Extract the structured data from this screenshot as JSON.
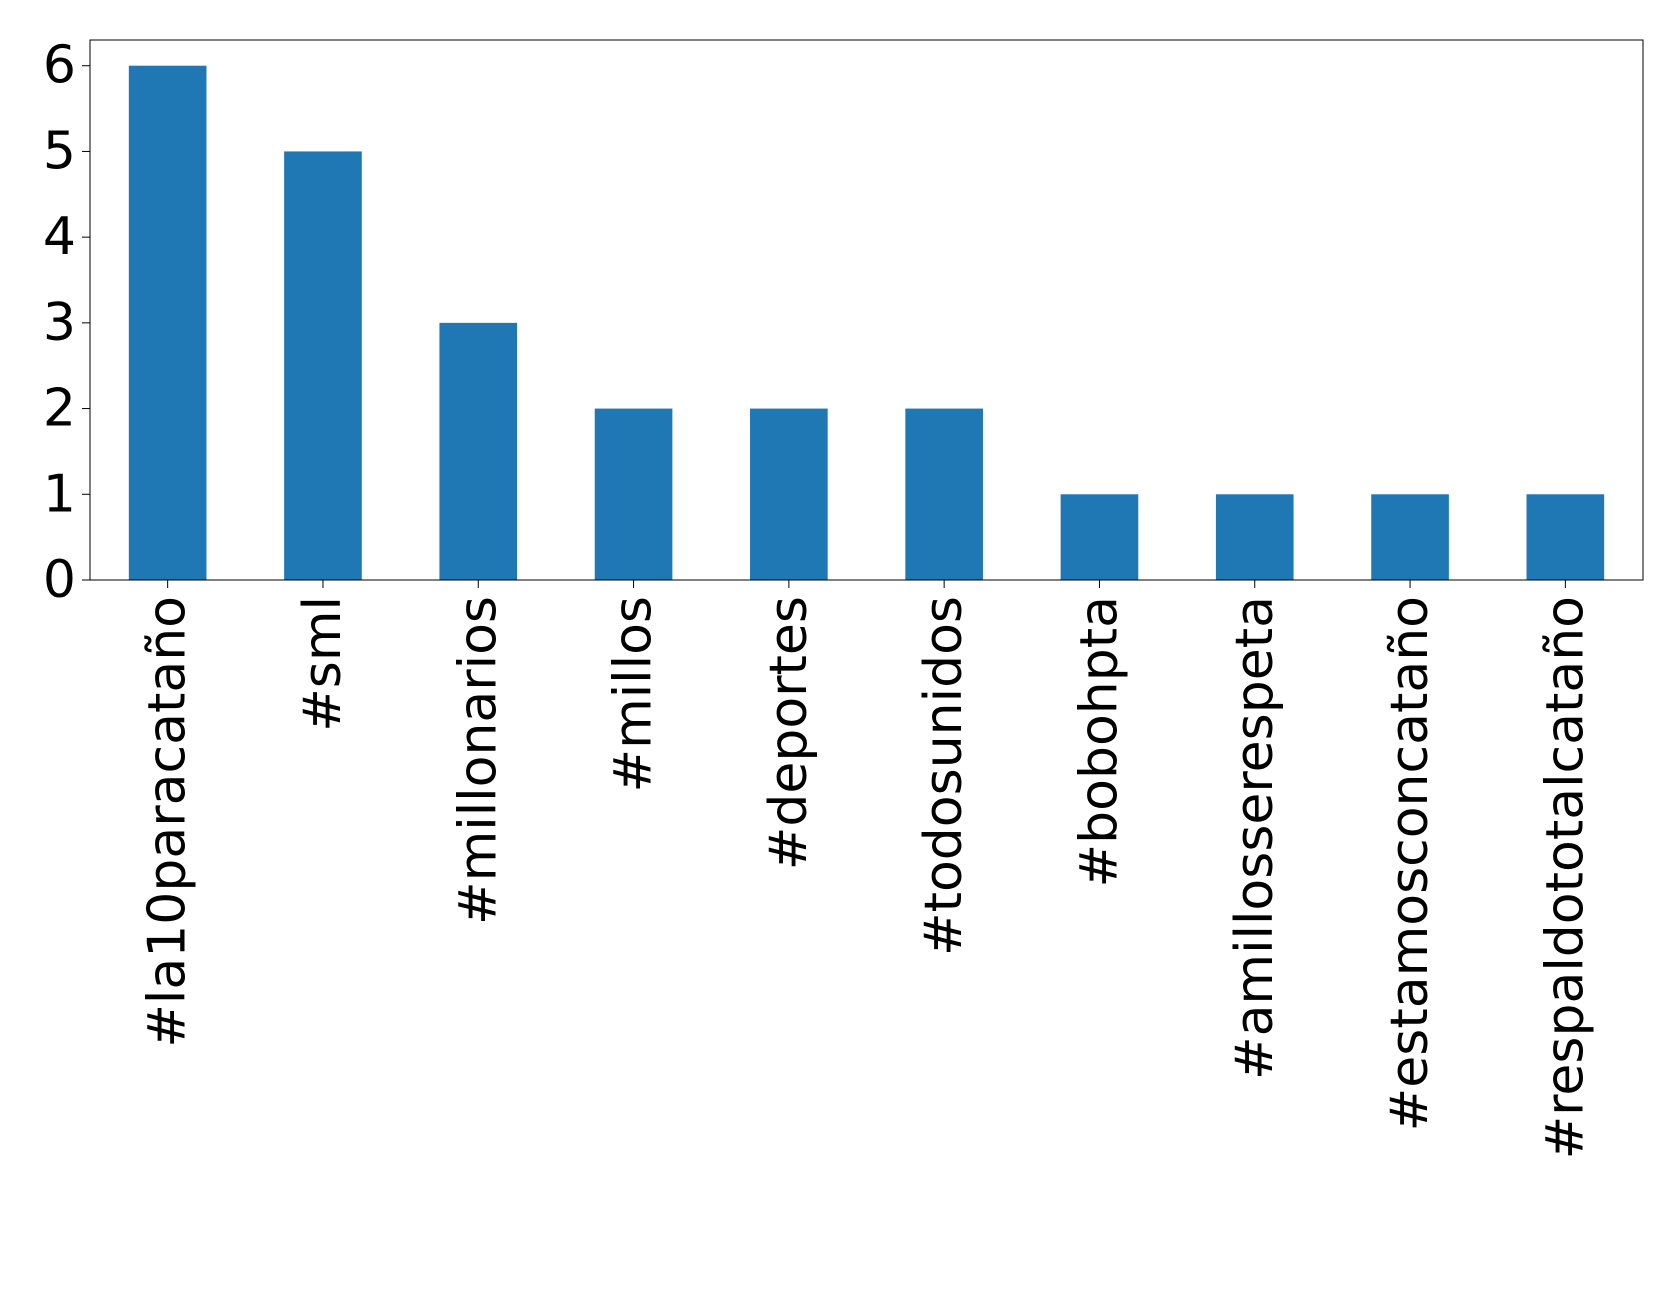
{
  "chart_data": {
    "type": "bar",
    "categories": [
      "#la10paracataño",
      "#sml",
      "#millonarios",
      "#millos",
      "#deportes",
      "#todosunidos",
      "#bobohpta",
      "#amillosserespeta",
      "#estamosconcataño",
      "#respaldototalcataño"
    ],
    "values": [
      6,
      5,
      3,
      2,
      2,
      2,
      1,
      1,
      1,
      1
    ],
    "color": "#1f77b4",
    "ylim": [
      0,
      6.3
    ],
    "yticks": [
      0,
      1,
      2,
      3,
      4,
      5,
      6
    ],
    "grid": false
  }
}
